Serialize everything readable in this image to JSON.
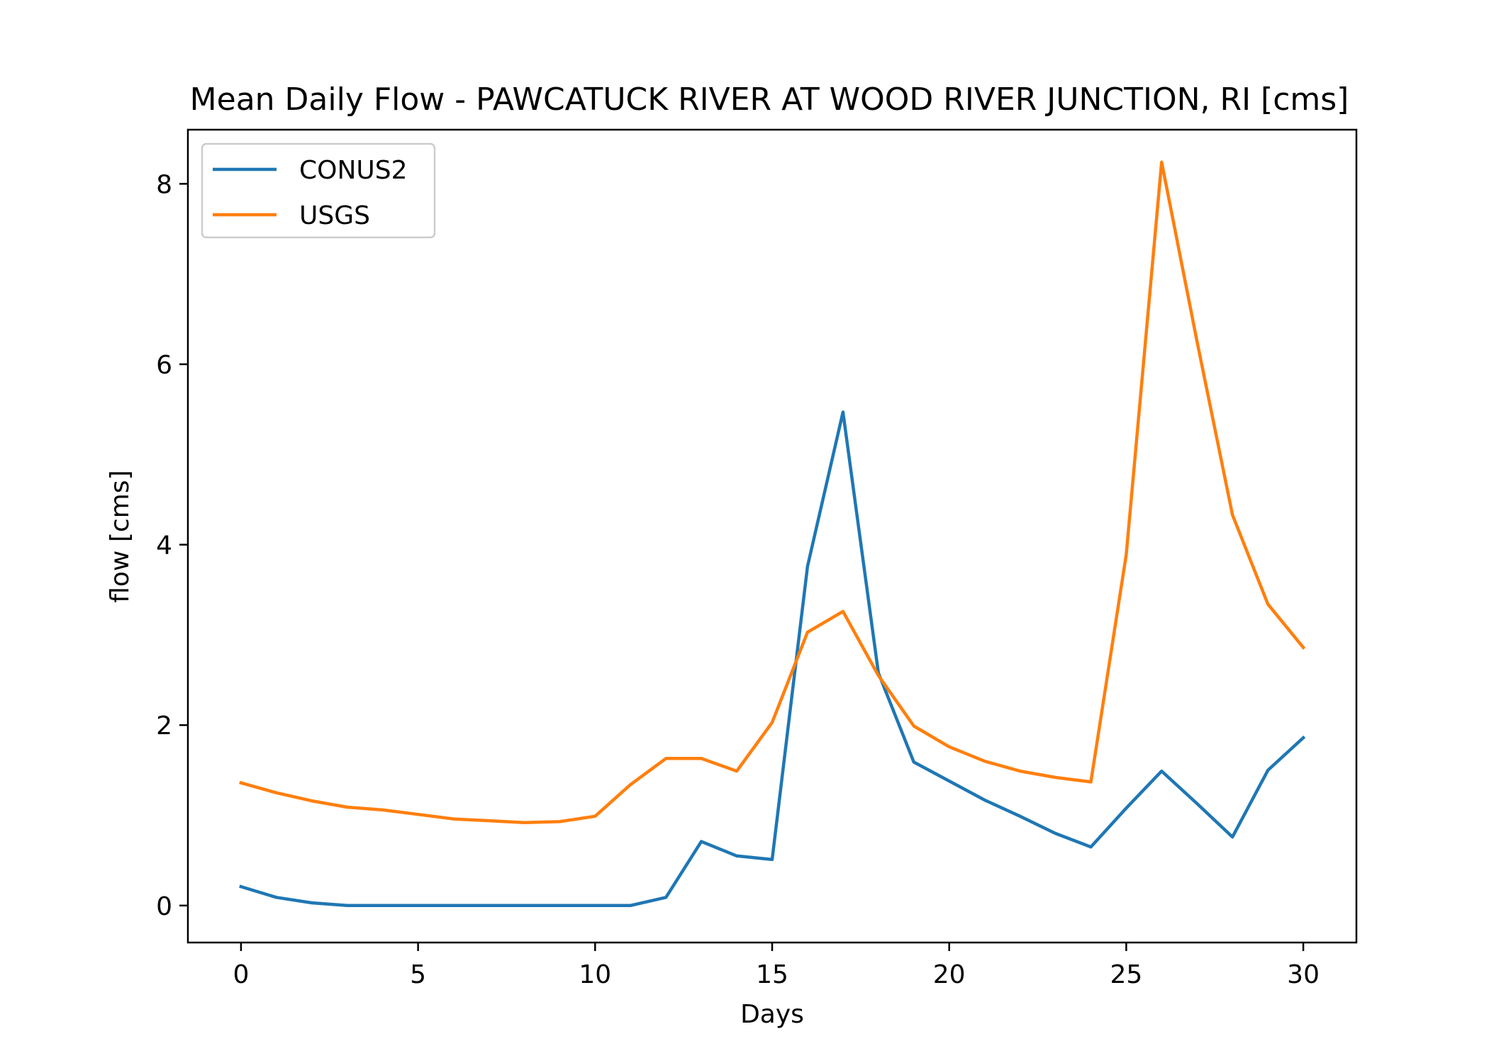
{
  "chart_data": {
    "type": "line",
    "title": "Mean Daily Flow - PAWCATUCK RIVER AT WOOD RIVER JUNCTION, RI [cms]",
    "xlabel": "Days",
    "ylabel": "flow [cms]",
    "xlim": [
      -1.5,
      31.5
    ],
    "ylim": [
      -0.41,
      8.6
    ],
    "xticks": [
      0,
      5,
      10,
      15,
      20,
      25,
      30
    ],
    "yticks": [
      0,
      2,
      4,
      6,
      8
    ],
    "grid": false,
    "legend_position": "top-left",
    "x": [
      0,
      1,
      2,
      3,
      4,
      5,
      6,
      7,
      8,
      9,
      10,
      11,
      12,
      13,
      14,
      15,
      16,
      17,
      18,
      19,
      20,
      21,
      22,
      23,
      24,
      25,
      26,
      27,
      28,
      29,
      30
    ],
    "series": [
      {
        "name": "CONUS2",
        "color": "#1f77b4",
        "values": [
          0.21,
          0.09,
          0.03,
          0.0,
          0.0,
          0.0,
          0.0,
          0.0,
          0.0,
          0.0,
          0.0,
          0.0,
          0.09,
          0.71,
          0.55,
          0.51,
          3.76,
          5.47,
          2.58,
          1.59,
          1.38,
          1.17,
          0.99,
          0.8,
          0.65,
          1.08,
          1.49,
          1.13,
          0.76,
          1.5,
          1.86
        ]
      },
      {
        "name": "USGS",
        "color": "#ff7f0e",
        "values": [
          1.36,
          1.25,
          1.16,
          1.09,
          1.06,
          1.01,
          0.96,
          0.94,
          0.92,
          0.93,
          0.99,
          1.34,
          1.63,
          1.63,
          1.49,
          2.03,
          3.03,
          3.26,
          2.55,
          1.99,
          1.76,
          1.6,
          1.49,
          1.42,
          1.37,
          3.89,
          8.24,
          6.25,
          4.33,
          3.34,
          2.86
        ]
      }
    ]
  }
}
